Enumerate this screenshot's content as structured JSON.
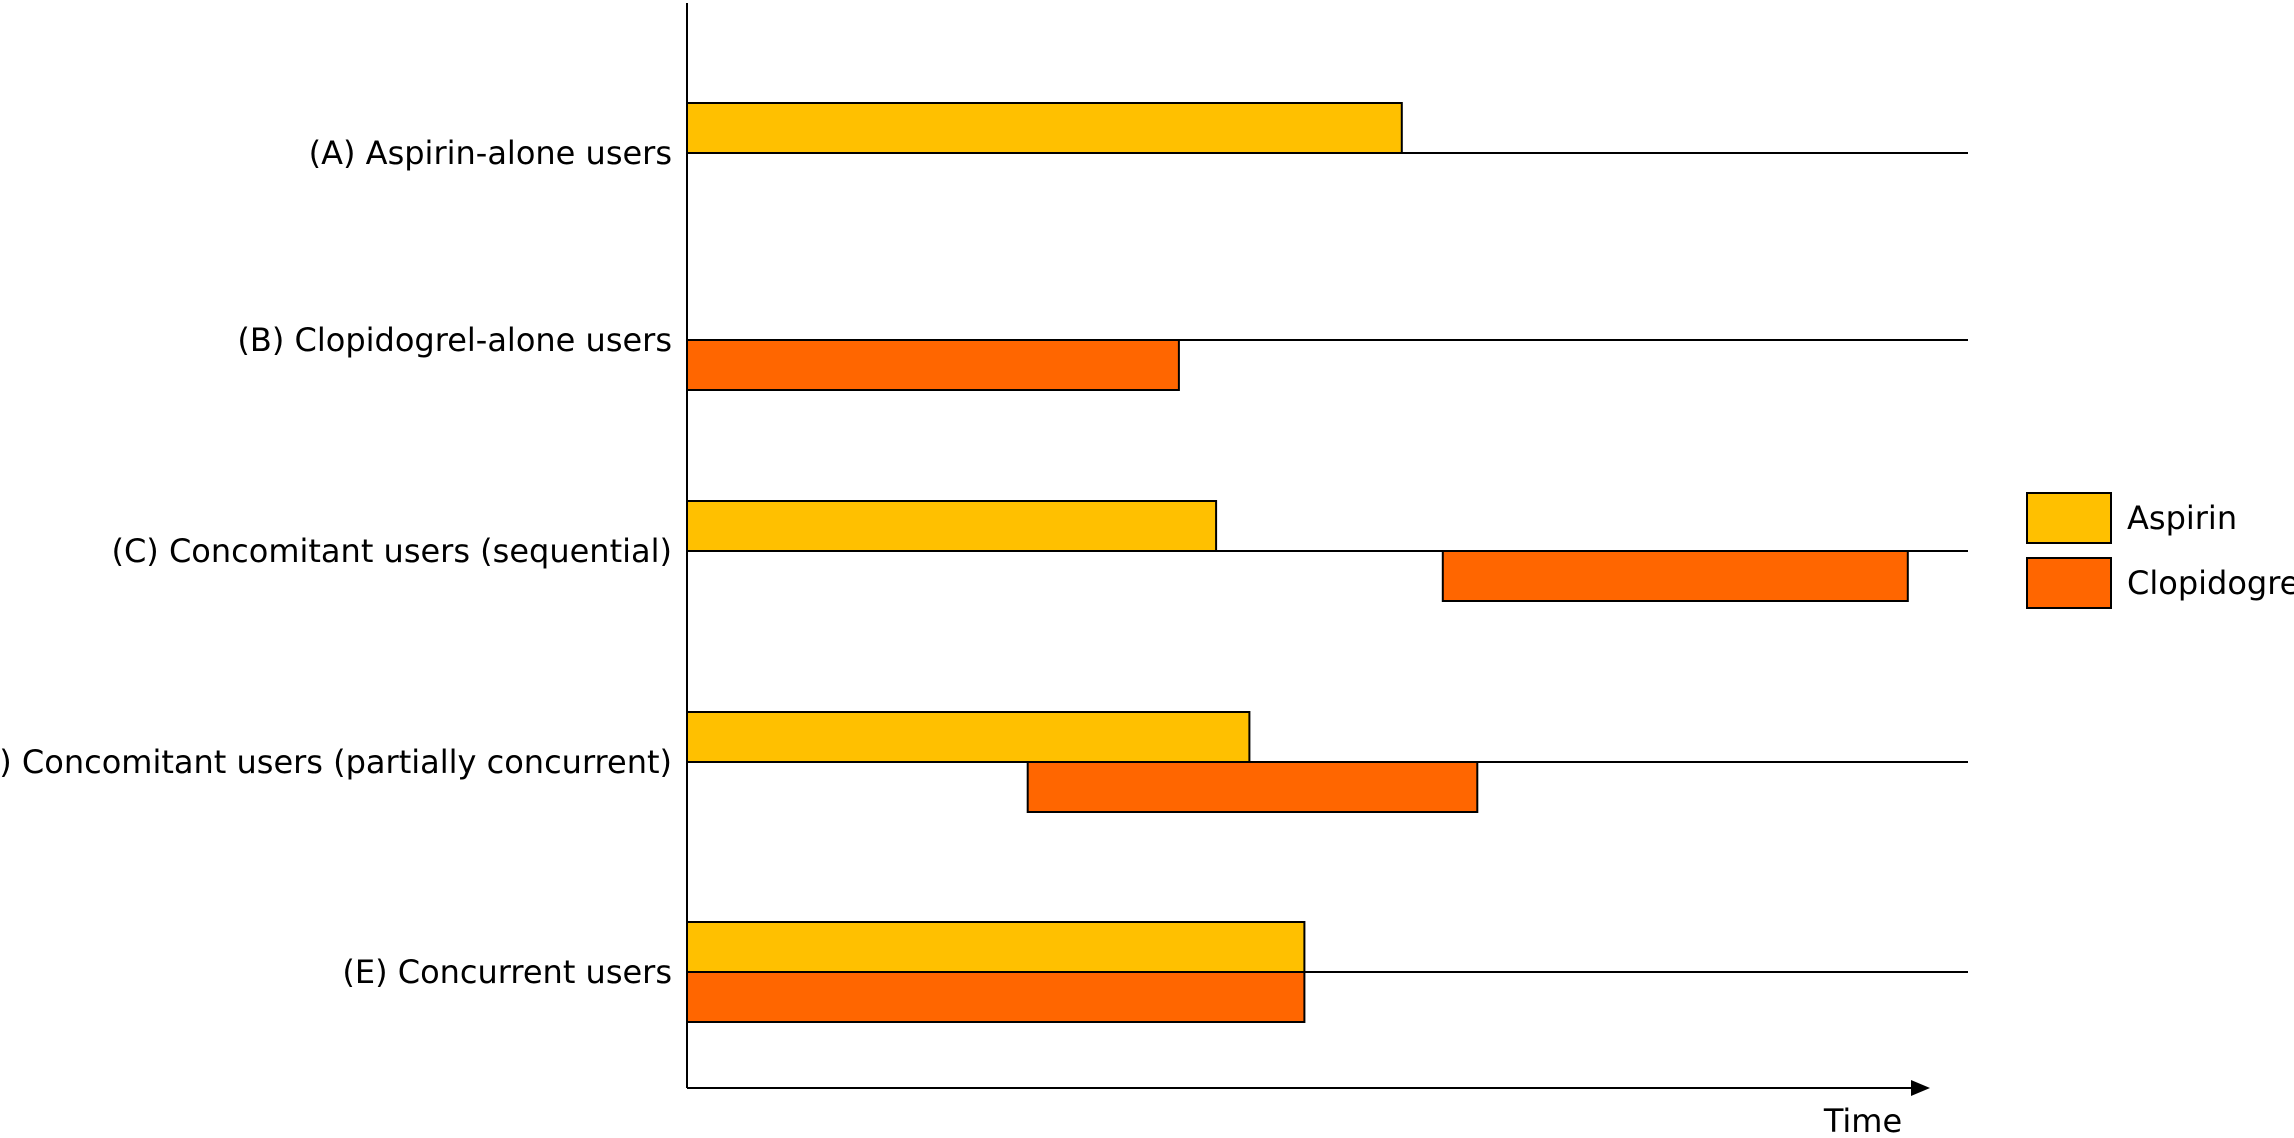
{
  "colors": {
    "aspirin": "#FFC000",
    "clopidogrel": "#FF6600",
    "outline": "#000000"
  },
  "axis": {
    "label": "Time"
  },
  "rows": [
    {
      "label": "(A) Aspirin-alone users",
      "bars": [
        {
          "drug": "aspirin",
          "start": 0,
          "end": 0.558
        }
      ]
    },
    {
      "label": "(B) Clopidogrel-alone users",
      "bars": [
        {
          "drug": "clopidogrel",
          "start": 0,
          "end": 0.384
        }
      ]
    },
    {
      "label": "(C) Concomitant users (sequential)",
      "bars": [
        {
          "drug": "aspirin",
          "start": 0,
          "end": 0.413
        },
        {
          "drug": "clopidogrel",
          "start": 0.59,
          "end": 0.953
        }
      ]
    },
    {
      "label": "(D) Concomitant users (partially concurrent)",
      "bars": [
        {
          "drug": "aspirin",
          "start": 0,
          "end": 0.439
        },
        {
          "drug": "clopidogrel",
          "start": 0.266,
          "end": 0.617
        }
      ]
    },
    {
      "label": "(E) Concurrent users",
      "bars": [
        {
          "drug": "aspirin",
          "start": 0,
          "end": 0.482
        },
        {
          "drug": "clopidogrel",
          "start": 0,
          "end": 0.482
        }
      ]
    }
  ],
  "legend": {
    "items": [
      {
        "drug": "aspirin",
        "label": "Aspirin"
      },
      {
        "drug": "clopidogrel",
        "label": "Clopidogrel"
      }
    ]
  }
}
